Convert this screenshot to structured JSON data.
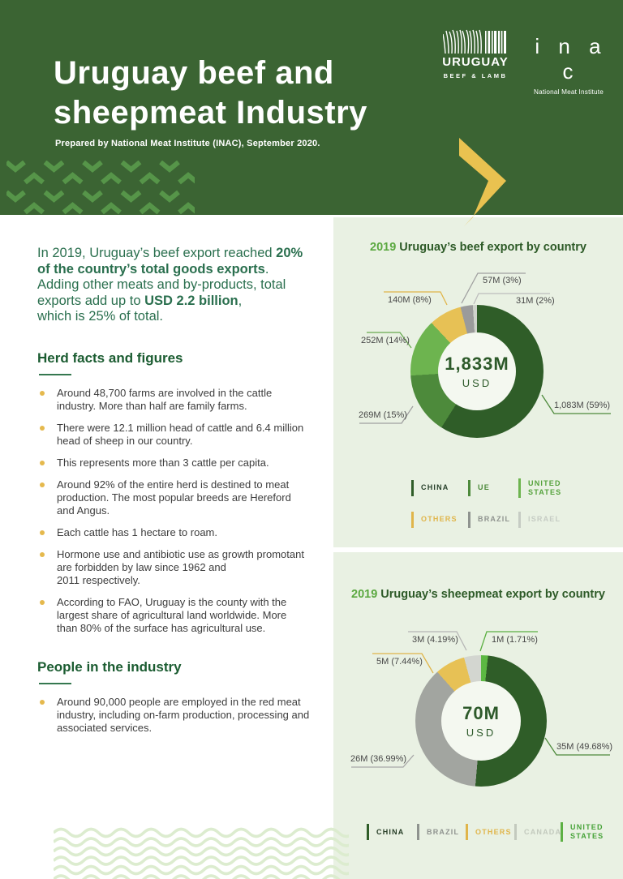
{
  "header": {
    "title": "Uruguay beef and\nsheepmeat Industry",
    "subtitle": "Prepared by National Meat Institute (INAC), September 2020.",
    "uruguay_logo": {
      "name": "URUGUAY",
      "tagline": "BEEF & LAMB"
    },
    "inac_logo": {
      "name": "i n a c",
      "tagline": "National Meat Institute"
    }
  },
  "intro": {
    "part1": "In 2019, Uruguay’s beef export reached ",
    "bold1": "20% of the country’s total goods exports",
    "part2": ". Adding other meats and by-products, total exports add up to ",
    "bold2": "USD 2.2 billion",
    "part3": ",\nwhich is 25% of total."
  },
  "sections": [
    {
      "heading": "Herd facts and figures",
      "bullets": [
        "Around 48,700 farms are involved in the cattle industry. More than half are family farms.",
        "There were 12.1 million head of cattle and 6.4 million head of sheep in our country.",
        "This represents more than 3 cattle per capita.",
        "Around 92% of the entire herd is destined to meat production. The most popular breeds are Hereford and Angus.",
        "Each cattle has 1 hectare to roam.",
        "Hormone use and antibiotic use as growth promotant are forbidden by law since 1962 and\n2011 respectively.",
        "According to FAO, Uruguay is the county with the largest share of agricultural land worldwide. More than 80% of the surface has agricultural use."
      ]
    },
    {
      "heading": "People in the industry",
      "bullets": [
        "Around 90,000 people are employed in the red meat industry, including on-farm production, processing and associated services."
      ]
    }
  ],
  "chart_data": [
    {
      "type": "pie",
      "style": "donut",
      "title_prefix": "2019",
      "title": "Uruguay’s beef export by country",
      "center": {
        "value": "1,833M",
        "unit": "USD"
      },
      "total_musd": 1833,
      "slices": [
        {
          "country": "CHINA",
          "label": "1,083M (59%)",
          "value_musd": 1083,
          "pct": 59,
          "color": "#2f5d28"
        },
        {
          "country": "UE",
          "label": "269M (15%)",
          "value_musd": 269,
          "pct": 15,
          "color": "#4d8a3b"
        },
        {
          "country": "UNITED STATES",
          "label": "252M (14%)",
          "value_musd": 252,
          "pct": 14,
          "color": "#6db44f"
        },
        {
          "country": "OTHERS",
          "label": "140M (8%)",
          "value_musd": 140,
          "pct": 8,
          "color": "#e7c155"
        },
        {
          "country": "BRAZIL",
          "label": "57M (3%)",
          "value_musd": 57,
          "pct": 3,
          "color": "#9b9b9b"
        },
        {
          "country": "ISRAEL",
          "label": "31M (2%)",
          "value_musd": 31,
          "pct": 2,
          "color": "#cfd3cb"
        }
      ],
      "legend": [
        {
          "label": "CHINA",
          "bar": "#2f5d28",
          "text": "#27402a"
        },
        {
          "label": "UE",
          "bar": "#4d8a3b",
          "text": "#4d8a3b"
        },
        {
          "label": "UNITED STATES",
          "bar": "#6db44f",
          "text": "#55a23c"
        },
        {
          "label": "OTHERS",
          "bar": "#e0b54a",
          "text": "#e0b54a"
        },
        {
          "label": "BRAZIL",
          "bar": "#8f938f",
          "text": "#8f938f"
        },
        {
          "label": "ISRAEL",
          "bar": "#c6ccc4",
          "text": "#c6ccc4"
        }
      ]
    },
    {
      "type": "pie",
      "style": "donut",
      "title_prefix": "2019",
      "title": "Uruguay’s sheepmeat export by country",
      "center": {
        "value": "70M",
        "unit": "USD"
      },
      "total_musd": 70,
      "slices": [
        {
          "country": "UNITED STATES",
          "label": "1M (1.71%)",
          "value_musd": 1,
          "pct": 1.71,
          "color": "#5cb843"
        },
        {
          "country": "CHINA",
          "label": "35M (49.68%)",
          "value_musd": 35,
          "pct": 49.68,
          "color": "#2f5d28"
        },
        {
          "country": "BRAZIL",
          "label": "26M (36.99%)",
          "value_musd": 26,
          "pct": 36.99,
          "color": "#a2a5a0"
        },
        {
          "country": "OTHERS",
          "label": "5M (7.44%)",
          "value_musd": 5,
          "pct": 7.44,
          "color": "#e7c155"
        },
        {
          "country": "CANADA",
          "label": "3M (4.19%)",
          "value_musd": 3,
          "pct": 4.19,
          "color": "#d3d6d0"
        }
      ],
      "legend": [
        {
          "label": "CHINA",
          "bar": "#2f5d28",
          "text": "#263d26"
        },
        {
          "label": "BRAZIL",
          "bar": "#8f938f",
          "text": "#8f938f"
        },
        {
          "label": "OTHERS",
          "bar": "#e0b54a",
          "text": "#e0b54a"
        },
        {
          "label": "CANADA",
          "bar": "#c3cabe",
          "text": "#c3cabe"
        },
        {
          "label": "UNITED STATES",
          "bar": "#5cb043",
          "text": "#47a339"
        }
      ]
    }
  ]
}
